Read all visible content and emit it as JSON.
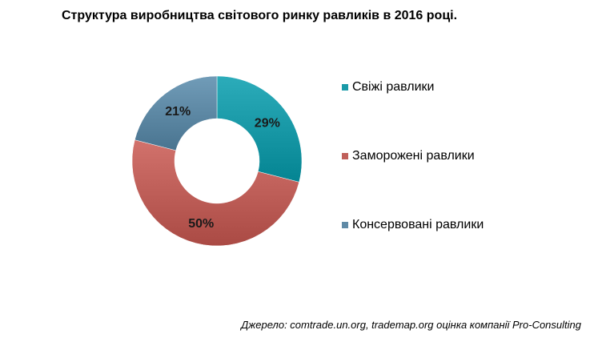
{
  "chart_data": {
    "type": "pie",
    "variant": "donut",
    "title": "Структура виробництва світового ринку равликів в 2016 році.",
    "categories": [
      "Свіжі равлики",
      "Заморожені равлики",
      "Консервовані равлики"
    ],
    "values": [
      29,
      50,
      21
    ],
    "value_labels": [
      "29%",
      "50%",
      "21%"
    ],
    "colors": [
      "#1a9aa8",
      "#c0605a",
      "#5f8aa6"
    ],
    "legend_position": "right"
  },
  "source_note": "Джерело: comtrade.un.org, trademap.org оцінка компанії Pro-Consulting"
}
